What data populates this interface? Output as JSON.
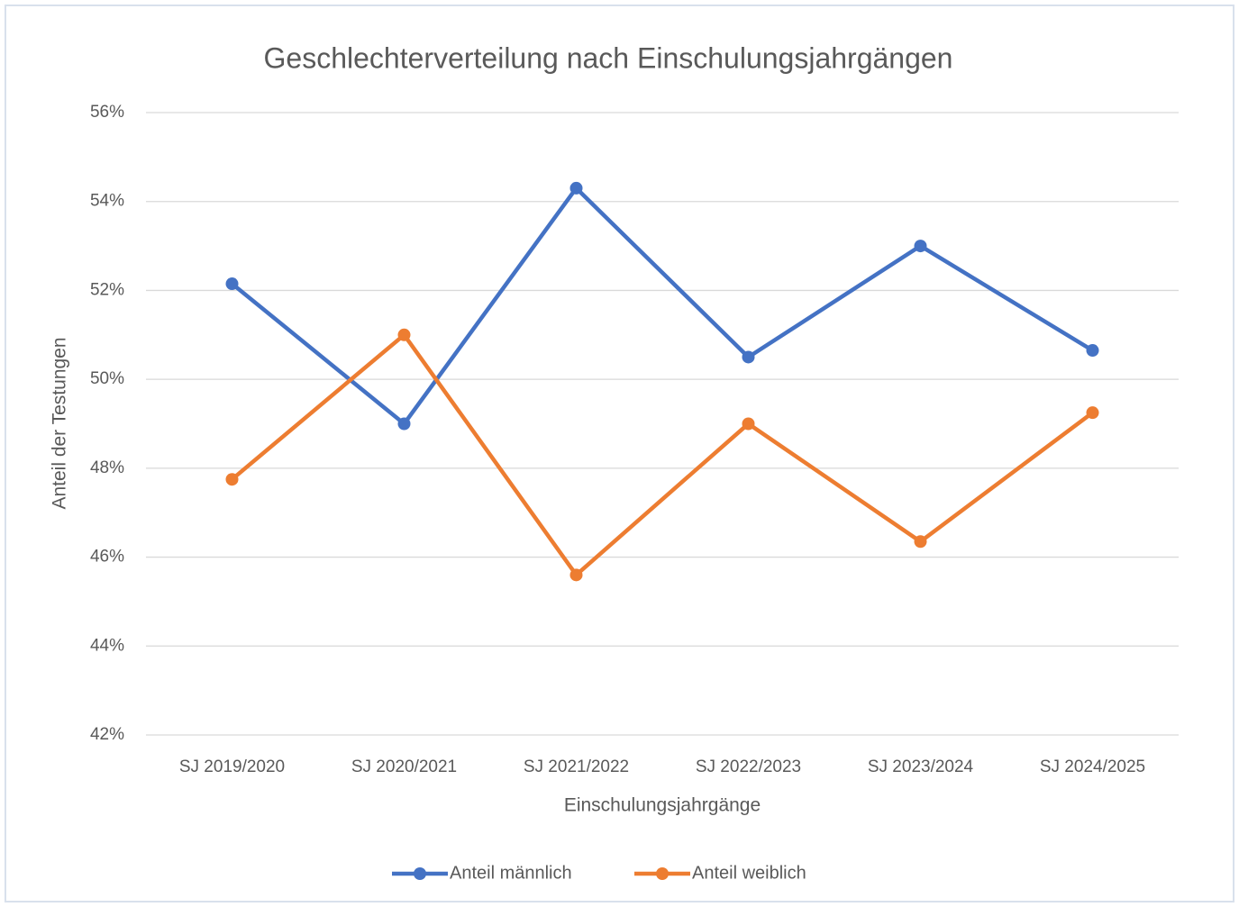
{
  "chart_data": {
    "type": "line",
    "title": "Geschlechterverteilung nach Einschulungsjahrgängen",
    "x_label": "Einschulungsjahrgänge",
    "y_label": "Anteil der Testungen",
    "categories": [
      "SJ 2019/2020",
      "SJ 2020/2021",
      "SJ 2021/2022",
      "SJ 2022/2023",
      "SJ 2023/2024",
      "SJ 2024/2025"
    ],
    "series": [
      {
        "name": "Anteil männlich",
        "color": "#4472c4",
        "values": [
          52.15,
          49.0,
          54.3,
          50.5,
          53.0,
          50.65
        ]
      },
      {
        "name": "Anteil weiblich",
        "color": "#ed7d31",
        "values": [
          47.75,
          51.0,
          45.6,
          49.0,
          46.35,
          49.25
        ]
      }
    ],
    "ylim": [
      42,
      56
    ],
    "yticks": [
      {
        "value": 42,
        "label": "42%"
      },
      {
        "value": 44,
        "label": "44%"
      },
      {
        "value": 46,
        "label": "46%"
      },
      {
        "value": 48,
        "label": "48%"
      },
      {
        "value": 50,
        "label": "50%"
      },
      {
        "value": 52,
        "label": "52%"
      },
      {
        "value": 54,
        "label": "54%"
      },
      {
        "value": 56,
        "label": "56%"
      }
    ],
    "grid": true,
    "legend": "bottom"
  }
}
